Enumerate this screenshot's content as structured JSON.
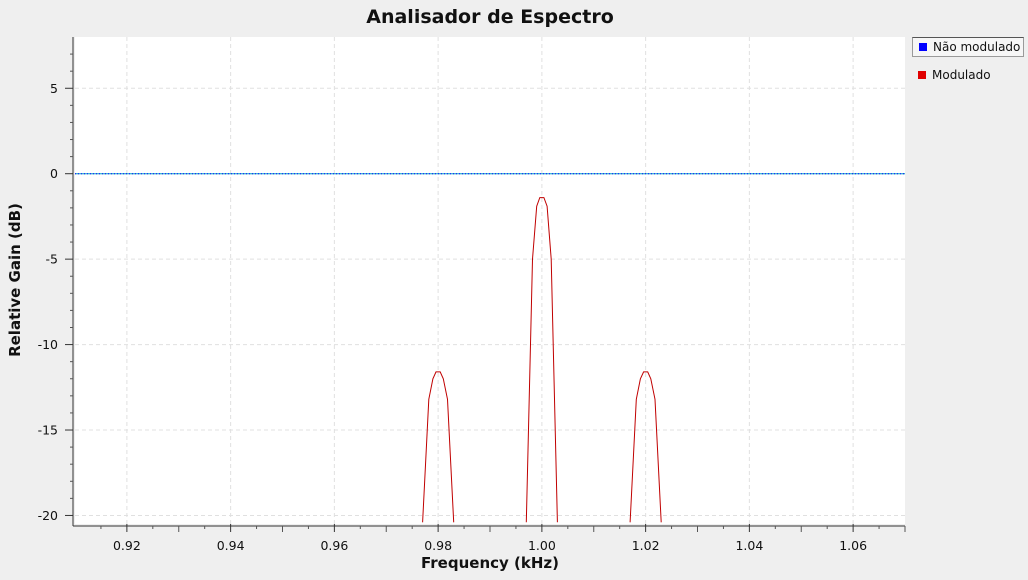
{
  "chart_data": {
    "type": "line",
    "title": "Analisador de Espectro",
    "xlabel": "Frequency (kHz)",
    "ylabel": "Relative Gain (dB)",
    "xlim": [
      0.91,
      1.07
    ],
    "ylim": [
      -20.5,
      8.0
    ],
    "x_ticks": [
      0.92,
      0.94,
      0.96,
      0.98,
      1.0,
      1.02,
      1.04,
      1.06
    ],
    "x_tick_labels": [
      "0.92",
      "0.94",
      "0.96",
      "0.98",
      "1.00",
      "1.02",
      "1.04",
      "1.06"
    ],
    "y_ticks": [
      5,
      0,
      -5,
      -10,
      -15,
      -20
    ],
    "y_tick_labels": [
      "5",
      "0",
      "-5",
      "-10",
      "-15",
      "-20"
    ],
    "grid": true,
    "legend_position": "right",
    "series": [
      {
        "name": "Não modulado",
        "color": "#0000ff",
        "x": [
          0.91,
          1.07
        ],
        "y": [
          0,
          0
        ]
      },
      {
        "name": "Modulado",
        "color": "#e00000",
        "x": [
          0.977,
          0.9782,
          0.979,
          0.9796,
          0.9804,
          0.981,
          0.9818,
          0.983,
          0.997,
          0.9982,
          0.999,
          0.9996,
          1.0004,
          1.001,
          1.0018,
          1.003,
          1.017,
          1.0182,
          1.019,
          1.0196,
          1.0204,
          1.021,
          1.0218,
          1.023
        ],
        "y": [
          -20.4,
          -13.2,
          -12.0,
          -11.6,
          -11.6,
          -12.0,
          -13.2,
          -20.4,
          -20.4,
          -5.0,
          -1.9,
          -1.4,
          -1.4,
          -1.9,
          -5.0,
          -20.4,
          -20.4,
          -13.2,
          -12.0,
          -11.6,
          -11.6,
          -12.0,
          -13.2,
          -20.4
        ]
      }
    ]
  },
  "legend": {
    "items": [
      {
        "label": "Não modulado",
        "color": "#0000ff"
      },
      {
        "label": "Modulado",
        "color": "#e00000"
      }
    ]
  }
}
